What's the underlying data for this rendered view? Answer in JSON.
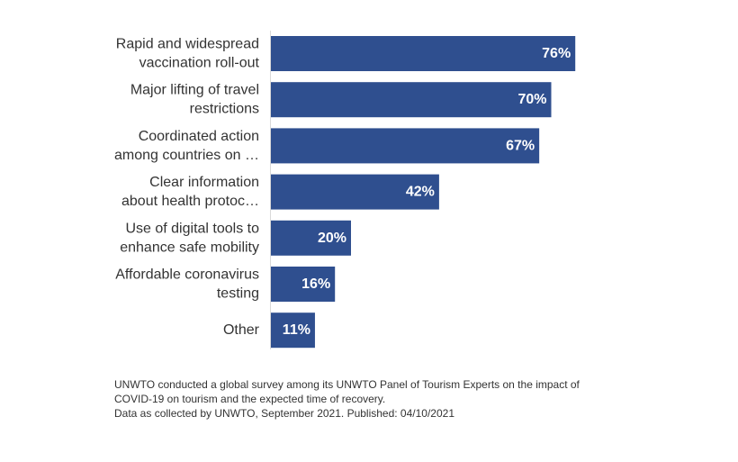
{
  "chart_data": {
    "type": "bar",
    "orientation": "horizontal",
    "categories": [
      [
        "Rapid and widespread",
        "vaccination roll-out"
      ],
      [
        "Major lifting of travel",
        "restrictions"
      ],
      [
        "Coordinated action",
        "among countries on …"
      ],
      [
        "Clear information",
        "about health protoc…"
      ],
      [
        "Use of digital tools to",
        "enhance safe mobility"
      ],
      [
        "Affordable coronavirus",
        "testing"
      ],
      [
        "Other"
      ]
    ],
    "values": [
      76,
      70,
      67,
      42,
      20,
      16,
      11
    ],
    "value_labels": [
      "76%",
      "70%",
      "67%",
      "42%",
      "20%",
      "16%",
      "11%"
    ],
    "xlim": [
      0,
      100
    ],
    "grid": false,
    "bar_color": "#2f4f8f"
  },
  "footnote": {
    "line1": "UNWTO conducted a global survey among its UNWTO Panel of Tourism Experts on the impact of COVID-19 on tourism and the expected time of recovery.",
    "line2": "Data as collected by UNWTO, September 2021. Published: 04/10/2021"
  }
}
